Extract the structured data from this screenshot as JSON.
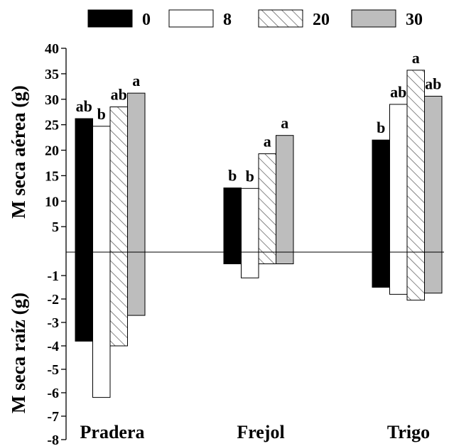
{
  "chart_data": {
    "type": "bar",
    "categories": [
      "Pradera",
      "Frejol",
      "Trigo"
    ],
    "legend": [
      "0",
      "8",
      "20",
      "30"
    ],
    "series": [
      {
        "name": "0",
        "fill": "black",
        "top": [
          26.2,
          12.6,
          22.0
        ],
        "bottom": [
          -3.8,
          -0.5,
          -1.5
        ],
        "letters": [
          "ab",
          "b",
          "b"
        ]
      },
      {
        "name": "8",
        "fill": "white",
        "top": [
          24.7,
          12.5,
          29.0
        ],
        "bottom": [
          -6.2,
          -1.1,
          -1.8
        ],
        "letters": [
          "b",
          "b",
          "ab"
        ]
      },
      {
        "name": "20",
        "fill": "hatched",
        "top": [
          28.5,
          19.3,
          35.7
        ],
        "bottom": [
          -4.0,
          -0.5,
          -2.05
        ],
        "letters": [
          "ab",
          "a",
          "a"
        ]
      },
      {
        "name": "30",
        "fill": "grey",
        "top": [
          31.2,
          22.9,
          30.6
        ],
        "bottom": [
          -2.7,
          -0.5,
          -1.75
        ],
        "letters": [
          "a",
          "a",
          "ab"
        ]
      }
    ],
    "y_top": {
      "label": "M seca aérea (g)",
      "ticks": [
        5,
        10,
        15,
        20,
        25,
        30,
        35,
        40
      ],
      "range": [
        0,
        40
      ]
    },
    "y_bottom": {
      "label": "M seca raíz (g)",
      "ticks": [
        -1,
        -2,
        -3,
        -4,
        -5,
        -6,
        -7,
        -8
      ],
      "range": [
        -8,
        0
      ]
    },
    "colors": {
      "black": "#000000",
      "white": "#ffffff",
      "grey": "#bdbdbd",
      "hatch_line": "#555555"
    },
    "legend_position": "top"
  }
}
